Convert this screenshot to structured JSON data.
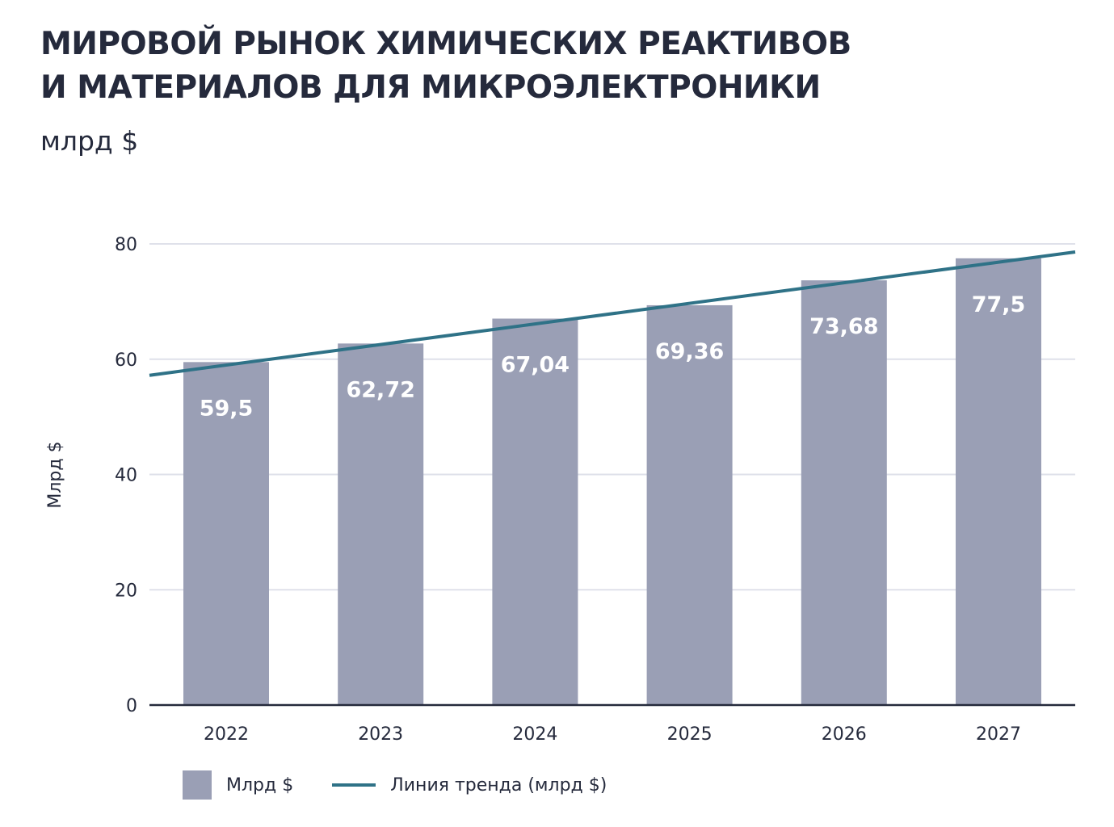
{
  "title_lines": [
    "МИРОВОЙ РЫНОК ХИМИЧЕСКИХ РЕАКТИВОВ",
    "И МАТЕРИАЛОВ ДЛЯ МИКРОЭЛЕКТРОНИКИ"
  ],
  "subtitle": "млрд $",
  "colors": {
    "bar": "#9a9fb5",
    "trend": "#2f7287",
    "grid": "#dfe1ea",
    "axis": "#252a3c",
    "text": "#252a3c",
    "bar_label": "#ffffff"
  },
  "legend": {
    "bars_label": "Млрд $",
    "trend_label": "Линия тренда (млрд $)"
  },
  "chart_data": {
    "type": "bar",
    "categories": [
      "2022",
      "2023",
      "2024",
      "2025",
      "2026",
      "2027"
    ],
    "series": [
      {
        "name": "Млрд $",
        "values": [
          59.5,
          62.72,
          67.04,
          69.36,
          73.68,
          77.5
        ],
        "labels": [
          "59,5",
          "62,72",
          "67,04",
          "69,36",
          "73,68",
          "77,5"
        ]
      }
    ],
    "trend": {
      "name": "Линия тренда (млрд $)",
      "start": 57.2,
      "end": 78.6
    },
    "ylabel": "Млрд $",
    "ylim": [
      0,
      80
    ],
    "yticks": [
      0,
      20,
      40,
      60,
      80
    ],
    "grid": true,
    "legend_position": "bottom-left"
  }
}
